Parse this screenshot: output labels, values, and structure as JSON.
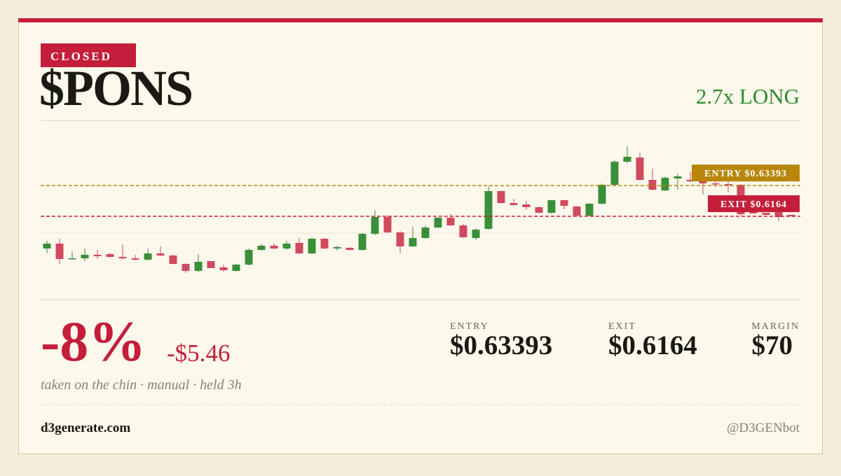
{
  "status": "CLOSED",
  "ticker": "$PONS",
  "position": "2.7x LONG",
  "chart_data": {
    "type": "candlestick",
    "ylim": [
      0.572,
      0.668
    ],
    "up_color": "#3a8f3a",
    "down_color": "#d04a5e",
    "candles": [
      [
        0.598,
        0.6024,
        0.5952,
        0.6008
      ],
      [
        0.6008,
        0.6036,
        0.5892,
        0.592
      ],
      [
        0.592,
        0.5964,
        0.5916,
        0.5924
      ],
      [
        0.5924,
        0.598,
        0.5908,
        0.5944
      ],
      [
        0.5944,
        0.5972,
        0.592,
        0.5936
      ],
      [
        0.5948,
        0.5956,
        0.5928,
        0.5932
      ],
      [
        0.5932,
        0.6004,
        0.5916,
        0.5924
      ],
      [
        0.5924,
        0.5944,
        0.5912,
        0.5916
      ],
      [
        0.5916,
        0.598,
        0.5912,
        0.5952
      ],
      [
        0.5952,
        0.5992,
        0.5936,
        0.594
      ],
      [
        0.594,
        0.5944,
        0.5888,
        0.5892
      ],
      [
        0.5892,
        0.5896,
        0.584,
        0.5852
      ],
      [
        0.5852,
        0.5948,
        0.5844,
        0.5904
      ],
      [
        0.5908,
        0.5908,
        0.5868,
        0.5868
      ],
      [
        0.5872,
        0.5888,
        0.5848,
        0.5856
      ],
      [
        0.5852,
        0.5892,
        0.5848,
        0.5888
      ],
      [
        0.5888,
        0.598,
        0.5884,
        0.5972
      ],
      [
        0.5972,
        0.6008,
        0.5968,
        0.5996
      ],
      [
        0.5996,
        0.6008,
        0.5976,
        0.598
      ],
      [
        0.598,
        0.6024,
        0.5972,
        0.6008
      ],
      [
        0.6012,
        0.604,
        0.5948,
        0.5952
      ],
      [
        0.5952,
        0.604,
        0.5948,
        0.6036
      ],
      [
        0.6036,
        0.604,
        0.5976,
        0.598
      ],
      [
        0.598,
        0.5996,
        0.5968,
        0.5988
      ],
      [
        0.5984,
        0.5988,
        0.5968,
        0.5972
      ],
      [
        0.5972,
        0.6068,
        0.5968,
        0.6064
      ],
      [
        0.6064,
        0.62,
        0.6056,
        0.616
      ],
      [
        0.616,
        0.6168,
        0.6068,
        0.6072
      ],
      [
        0.6072,
        0.608,
        0.5952,
        0.5992
      ],
      [
        0.5992,
        0.6104,
        0.5988,
        0.604
      ],
      [
        0.604,
        0.6112,
        0.6036,
        0.61
      ],
      [
        0.61,
        0.616,
        0.6096,
        0.6156
      ],
      [
        0.6156,
        0.6176,
        0.6108,
        0.6112
      ],
      [
        0.6112,
        0.612,
        0.604,
        0.6044
      ],
      [
        0.604,
        0.6096,
        0.6028,
        0.6088
      ],
      [
        0.6092,
        0.6336,
        0.6088,
        0.6308
      ],
      [
        0.6308,
        0.6312,
        0.6236,
        0.624
      ],
      [
        0.624,
        0.6264,
        0.6224,
        0.6228
      ],
      [
        0.6232,
        0.6252,
        0.62,
        0.6216
      ],
      [
        0.6216,
        0.622,
        0.618,
        0.6184
      ],
      [
        0.6184,
        0.626,
        0.618,
        0.6256
      ],
      [
        0.6256,
        0.626,
        0.6204,
        0.6224
      ],
      [
        0.622,
        0.6224,
        0.6164,
        0.6168
      ],
      [
        0.6168,
        0.624,
        0.6164,
        0.6236
      ],
      [
        0.6236,
        0.6352,
        0.6232,
        0.6344
      ],
      [
        0.6344,
        0.6484,
        0.6336,
        0.6476
      ],
      [
        0.6476,
        0.6564,
        0.6468,
        0.6504
      ],
      [
        0.65,
        0.6528,
        0.6368,
        0.6372
      ],
      [
        0.6372,
        0.6436,
        0.6312,
        0.6316
      ],
      [
        0.6312,
        0.6392,
        0.6308,
        0.6384
      ],
      [
        0.638,
        0.6408,
        0.6316,
        0.6392
      ],
      [
        0.6372,
        0.642,
        0.636,
        0.6364
      ],
      [
        0.6364,
        0.6364,
        0.6288,
        0.6352
      ],
      [
        0.6352,
        0.638,
        0.6336,
        0.6348
      ],
      [
        0.6348,
        0.6368,
        0.63,
        0.6344
      ],
      [
        0.6344,
        0.6348,
        0.6168,
        0.6176
      ],
      [
        0.6196,
        0.6196,
        0.618,
        0.618
      ],
      [
        0.6184,
        0.6184,
        0.6172,
        0.6172
      ],
      [
        0.62,
        0.6204,
        0.6136,
        0.616
      ],
      [
        0.6172,
        0.6172,
        0.6164,
        0.6164
      ]
    ],
    "reference_lines": [
      {
        "value": 0.63393,
        "label": "ENTRY $0.63393",
        "color": "#b8860b"
      },
      {
        "value": 0.6164,
        "label": "EXIT $0.6164",
        "color": "#c41e3a"
      }
    ]
  },
  "pnl": {
    "percent": "-8%",
    "amount": "-$5.46",
    "note": "taken on the chin · manual · held 3h"
  },
  "stats": [
    {
      "label": "ENTRY",
      "value": "$0.63393"
    },
    {
      "label": "EXIT",
      "value": "$0.6164"
    },
    {
      "label": "MARGIN",
      "value": "$70"
    }
  ],
  "footer": {
    "site": "d3generate.com",
    "handle": "@D3GENbot"
  }
}
